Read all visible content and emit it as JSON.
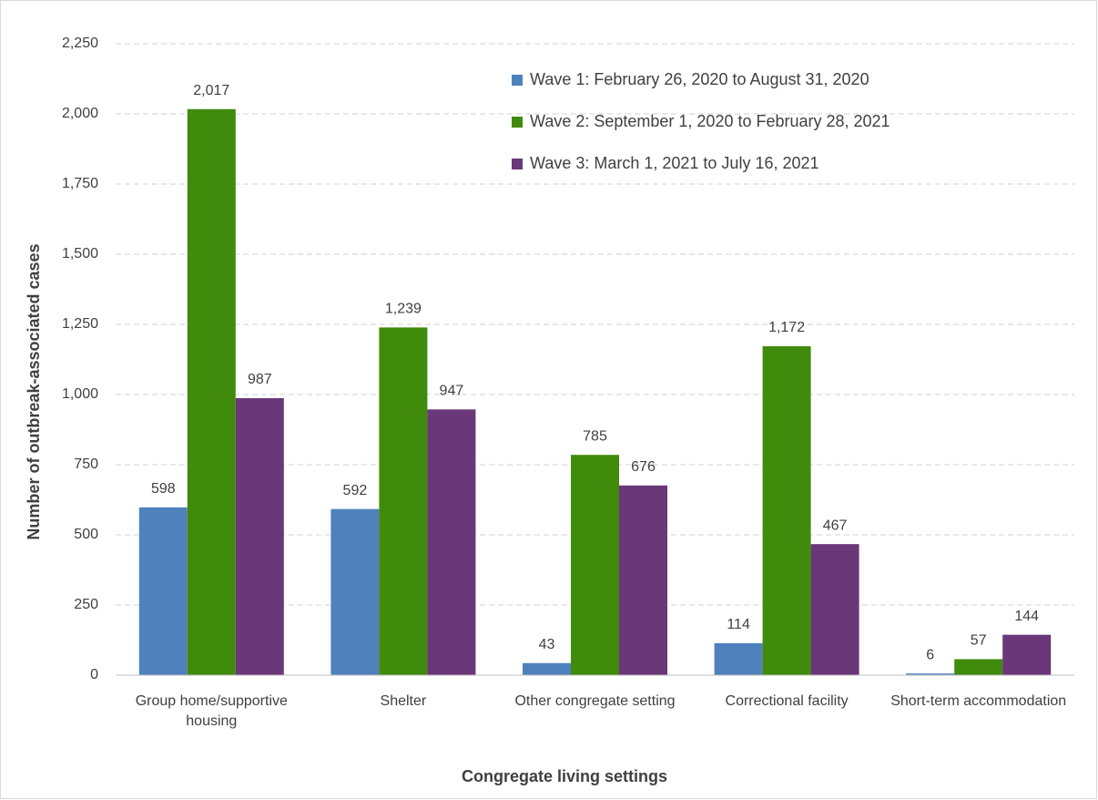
{
  "chart_data": {
    "type": "bar",
    "x_label": "Congregate living settings",
    "y_label": "Number of outbreak-associated cases",
    "categories": [
      "Group home/supportive housing",
      "Shelter",
      "Other congregate setting",
      "Correctional facility",
      "Short-term accommodation"
    ],
    "series": [
      {
        "name": "Wave 1: February 26, 2020 to August 31, 2020",
        "color": "#4f81bd",
        "values": [
          598,
          592,
          43,
          114,
          6
        ]
      },
      {
        "name": "Wave 2: September 1, 2020 to February 28, 2021",
        "color": "#408a0c",
        "values": [
          2017,
          1239,
          785,
          1172,
          57
        ],
        "value_labels": [
          "2,017",
          "1,239",
          "785",
          "1,172",
          "57"
        ]
      },
      {
        "name": "Wave 3: March 1, 2021 to July 16, 2021",
        "color": "#6a3778",
        "values": [
          987,
          947,
          676,
          467,
          144
        ]
      }
    ],
    "ylim": [
      0,
      2250
    ],
    "yticks": [
      0,
      250,
      500,
      750,
      {
        "value": 1000,
        "label": "1,000"
      },
      {
        "value": 1250,
        "label": "1,250"
      },
      {
        "value": 1500,
        "label": "1,500"
      },
      {
        "value": 1750,
        "label": "1,750"
      },
      {
        "value": 2000,
        "label": "2,000"
      },
      {
        "value": 2250,
        "label": "2,250"
      }
    ],
    "grid": true,
    "legend": "top-right"
  }
}
